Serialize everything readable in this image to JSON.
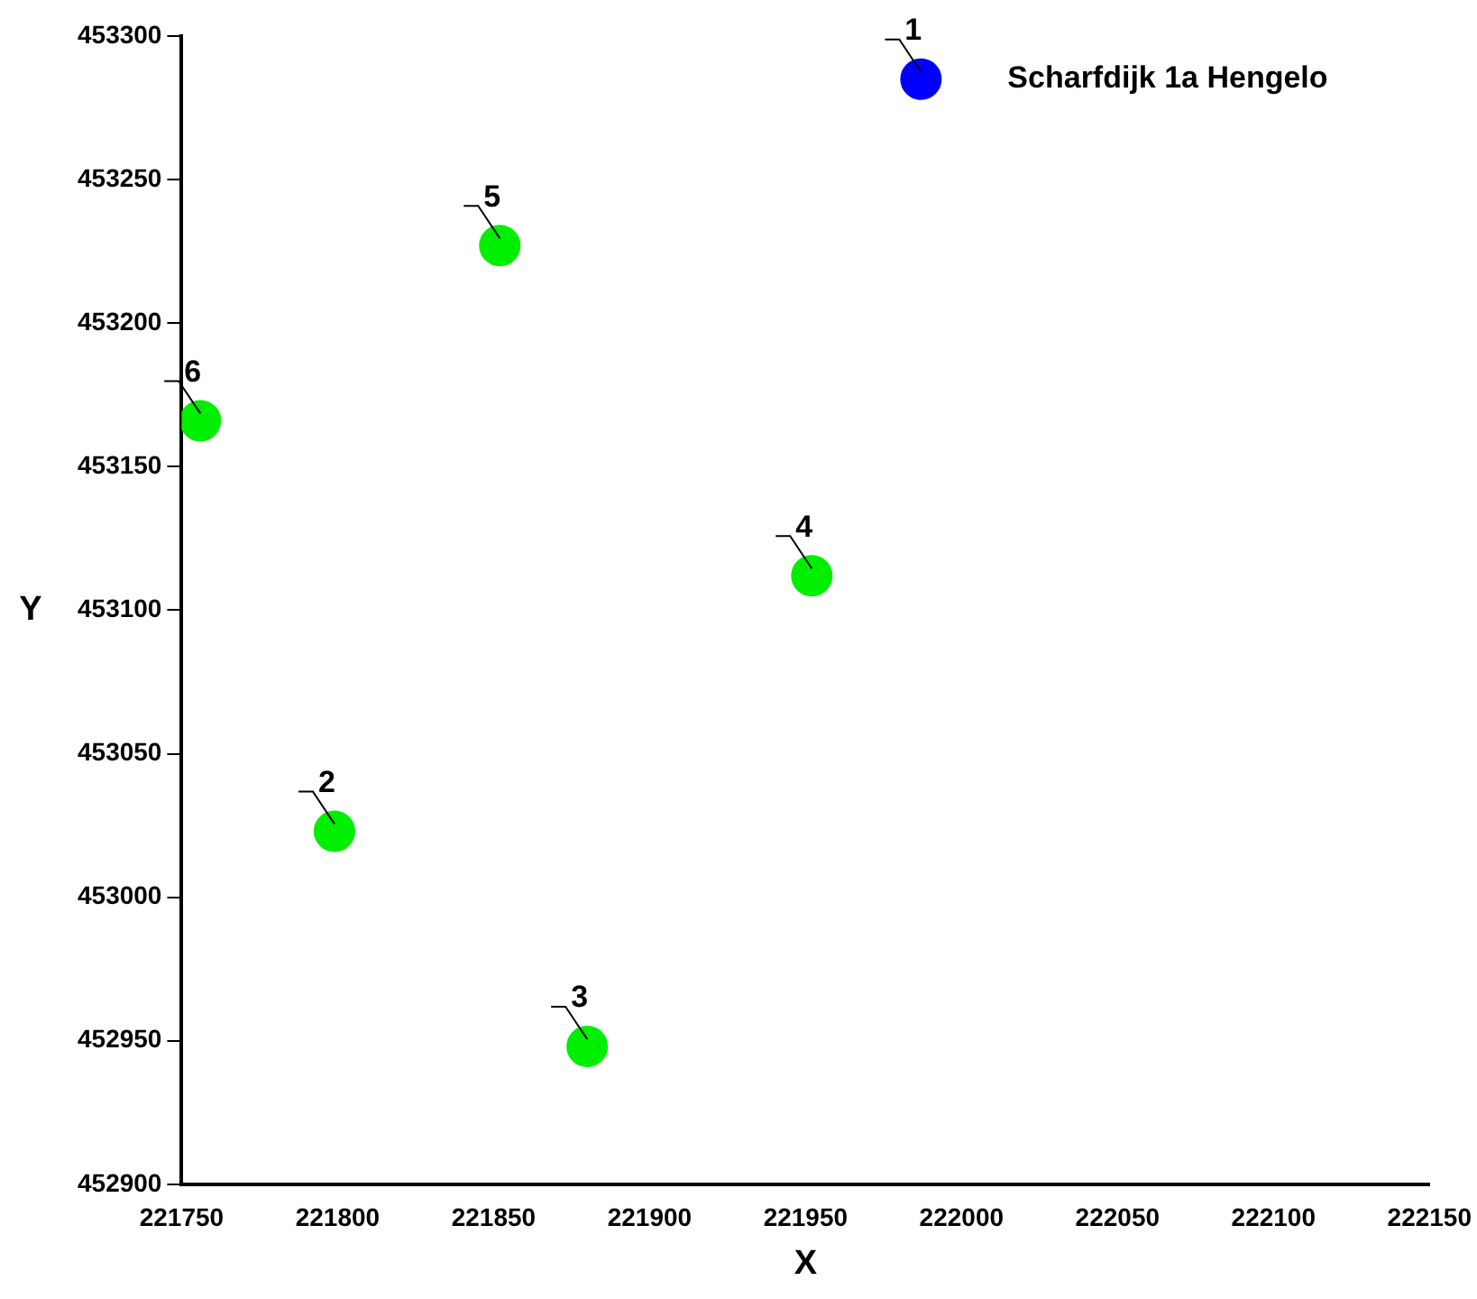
{
  "chart_data": {
    "type": "scatter",
    "xlabel": "X",
    "ylabel": "Y",
    "xlim": [
      221750,
      222150
    ],
    "xticks": [
      221750,
      221800,
      221850,
      221900,
      221950,
      222000,
      222050,
      222100,
      222150
    ],
    "ylim": [
      452900,
      453300
    ],
    "yticks": [
      452900,
      452950,
      453000,
      453050,
      453100,
      453150,
      453200,
      453250,
      453300
    ],
    "grid": false,
    "legend": false,
    "marker": "circle",
    "series": [
      {
        "name": "Scharfdijk 1a Hengelo",
        "color": "#0000ff",
        "x": [
          221987
        ],
        "values": [
          453285
        ]
      },
      {
        "color": "#00ee00",
        "x": [
          221799,
          221880,
          221952,
          221852,
          221756
        ],
        "values": [
          453023,
          452948,
          453112,
          453227,
          453166
        ]
      }
    ],
    "annotations": [
      {
        "text": "1",
        "x": 221987,
        "y": 453285
      },
      {
        "text": "2",
        "x": 221799,
        "y": 453023
      },
      {
        "text": "3",
        "x": 221880,
        "y": 452948
      },
      {
        "text": "4",
        "x": 221952,
        "y": 453112
      },
      {
        "text": "5",
        "x": 221852,
        "y": 453227
      },
      {
        "text": "6",
        "x": 221756,
        "y": 453166
      }
    ]
  }
}
